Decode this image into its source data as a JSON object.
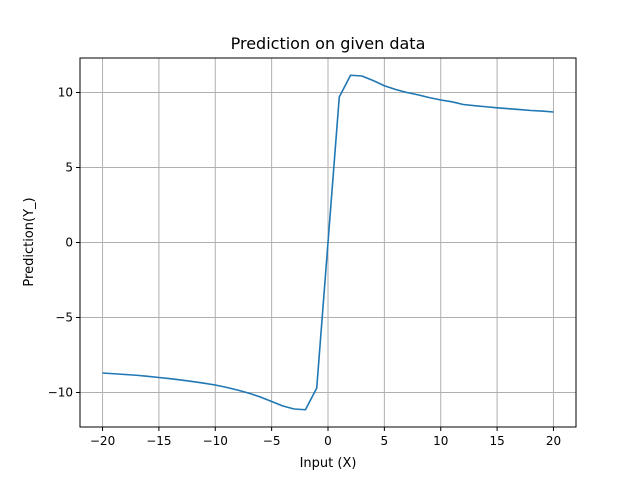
{
  "chart_data": {
    "type": "line",
    "title": "Prediction on given data",
    "xlabel": "Input (X)",
    "ylabel": "Prediction(Y_)",
    "xlim": [
      -22,
      22
    ],
    "ylim": [
      -12.3,
      12.3
    ],
    "xticks": [
      -20,
      -15,
      -10,
      -5,
      0,
      5,
      10,
      15,
      20
    ],
    "xtick_labels": [
      "−20",
      "−15",
      "−10",
      "−5",
      "0",
      "5",
      "10",
      "15",
      "20"
    ],
    "yticks": [
      -10,
      -5,
      0,
      5,
      10
    ],
    "ytick_labels": [
      "−10",
      "−5",
      "0",
      "5",
      "10"
    ],
    "grid": true,
    "line_color": "#1f77b4",
    "series": [
      {
        "x": [
          -20,
          -19,
          -18,
          -17,
          -16,
          -15,
          -14,
          -13,
          -12,
          -11,
          -10,
          -9,
          -8,
          -7,
          -6,
          -5,
          -4,
          -3,
          -2,
          -1,
          0,
          1,
          2,
          3,
          4,
          5,
          6,
          7,
          8,
          9,
          10,
          11,
          12,
          13,
          14,
          15,
          16,
          17,
          18,
          19,
          20
        ],
        "y": [
          -8.7,
          -8.75,
          -8.8,
          -8.85,
          -8.92,
          -9.0,
          -9.08,
          -9.17,
          -9.27,
          -9.38,
          -9.5,
          -9.66,
          -9.84,
          -10.05,
          -10.3,
          -10.6,
          -10.9,
          -11.1,
          -11.15,
          -9.7,
          0.0,
          9.7,
          11.15,
          11.1,
          10.8,
          10.45,
          10.2,
          10.0,
          9.84,
          9.66,
          9.5,
          9.38,
          9.2,
          9.12,
          9.05,
          8.98,
          8.92,
          8.86,
          8.8,
          8.76,
          8.7
        ]
      }
    ]
  }
}
